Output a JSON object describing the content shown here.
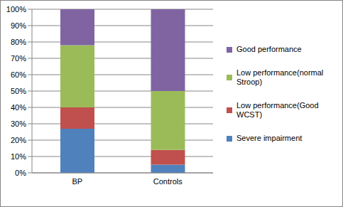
{
  "chart_data": {
    "type": "bar",
    "stacked": true,
    "grid": true,
    "legend": "right",
    "categories": [
      "BP",
      "Controls"
    ],
    "series": [
      {
        "name": "Severe impairment",
        "color": "#4F81BD",
        "values": [
          27,
          5
        ]
      },
      {
        "name": "Low performance(Good WCST)",
        "color": "#C0504D",
        "values": [
          13,
          9
        ]
      },
      {
        "name": "Low performance(normal Stroop)",
        "color": "#9BBB59",
        "values": [
          38,
          36
        ]
      },
      {
        "name": "Good performance",
        "color": "#8064A2",
        "values": [
          22,
          50
        ]
      }
    ],
    "ylim": [
      0,
      100
    ],
    "yticks": [
      {
        "value": 0,
        "label": "0%"
      },
      {
        "value": 10,
        "label": "10%"
      },
      {
        "value": 20,
        "label": "20%"
      },
      {
        "value": 30,
        "label": "30%"
      },
      {
        "value": 40,
        "label": "40%"
      },
      {
        "value": 50,
        "label": "50%"
      },
      {
        "value": 60,
        "label": "60%"
      },
      {
        "value": 70,
        "label": "70%"
      },
      {
        "value": 80,
        "label": "80%"
      },
      {
        "value": 90,
        "label": "90%"
      },
      {
        "value": 100,
        "label": "100%"
      }
    ]
  }
}
